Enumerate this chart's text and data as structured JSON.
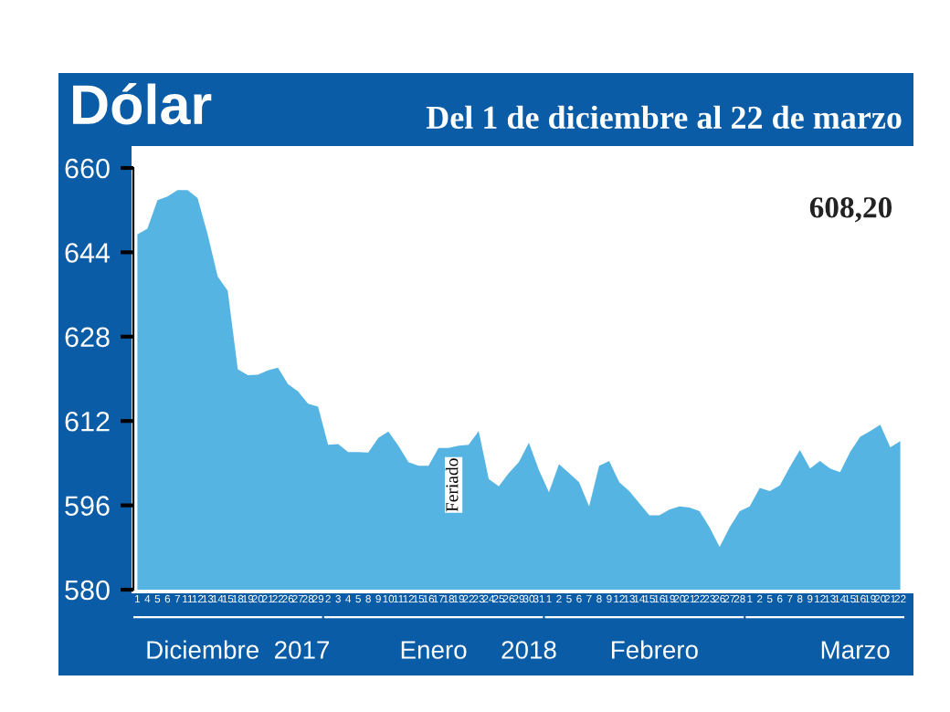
{
  "chart_data": {
    "type": "area",
    "title": "Dólar",
    "subtitle": "Del 1 de diciembre al 22 de marzo",
    "categories": [
      "1",
      "4",
      "5",
      "6",
      "7",
      "11",
      "12",
      "13",
      "14",
      "15",
      "18",
      "19",
      "20",
      "21",
      "22",
      "26",
      "27",
      "28",
      "29",
      "2",
      "3",
      "4",
      "5",
      "8",
      "9",
      "10",
      "11",
      "12",
      "15",
      "16",
      "17",
      "18",
      "19",
      "22",
      "23",
      "24",
      "25",
      "26",
      "29",
      "30",
      "31",
      "1",
      "2",
      "5",
      "6",
      "7",
      "8",
      "9",
      "12",
      "13",
      "14",
      "15",
      "16",
      "19",
      "20",
      "21",
      "22",
      "23",
      "26",
      "27",
      "28",
      "1",
      "2",
      "5",
      "6",
      "7",
      "8",
      "9",
      "12",
      "13",
      "14",
      "15",
      "16",
      "19",
      "20",
      "21",
      "22"
    ],
    "values": [
      647.4,
      648.5,
      653.9,
      654.6,
      655.8,
      655.8,
      654.3,
      647.4,
      639.4,
      636.7,
      621.8,
      620.7,
      620.8,
      621.6,
      622.1,
      619,
      617.6,
      615.3,
      614.7,
      607.5,
      607.6,
      606.1,
      606.1,
      606,
      608.8,
      610,
      607.3,
      604.2,
      603.5,
      603.5,
      606.9,
      606.9,
      607.3,
      607.5,
      610.1,
      601,
      599.6,
      602.1,
      604.2,
      607.9,
      602.7,
      598.5,
      603.8,
      602.1,
      600.4,
      595.8,
      603.5,
      604.4,
      600.4,
      598.7,
      596.4,
      594.1,
      594.1,
      595.2,
      595.8,
      595.6,
      594.9,
      591.8,
      588.1,
      591.8,
      594.9,
      595.8,
      599.3,
      598.7,
      599.8,
      603.3,
      606.5,
      603,
      604.4,
      603,
      602.3,
      606.1,
      609,
      610.1,
      611.3,
      607,
      608.2
    ],
    "color": "#56b4e3",
    "ylim": [
      580,
      660
    ],
    "yticks": [
      580,
      596,
      612,
      628,
      644,
      660
    ],
    "grid": false,
    "legend": false,
    "annotations": [
      "Feriado",
      "Diciembre  2017",
      "Enero",
      "2018",
      "Febrero",
      "Marzo",
      "608,20"
    ]
  }
}
